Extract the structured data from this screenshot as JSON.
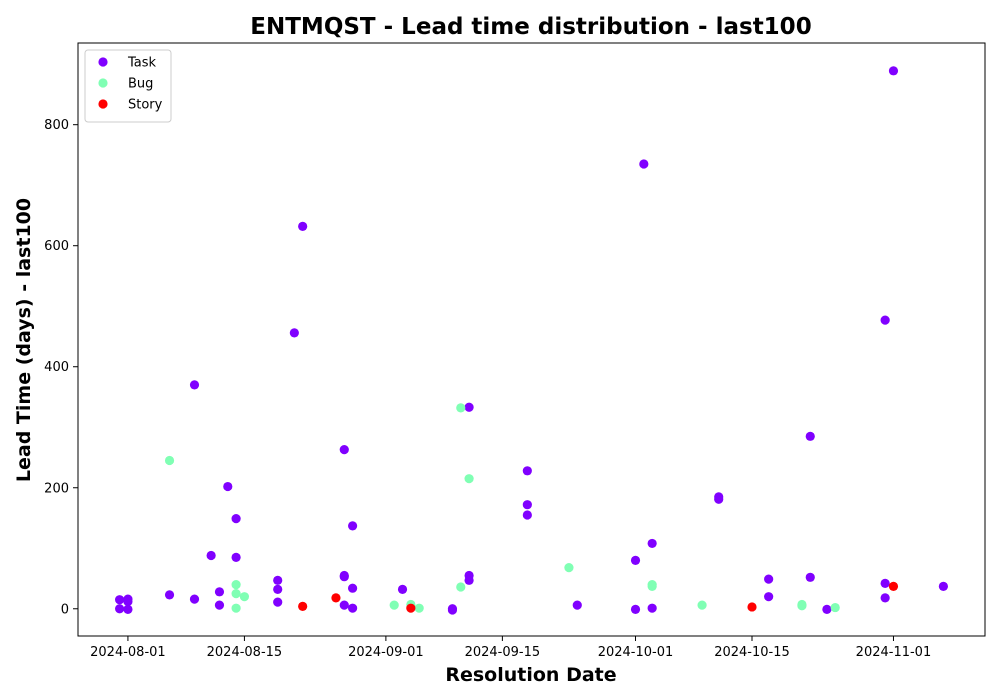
{
  "chart_data": {
    "type": "scatter",
    "title": "ENTMQST - Lead time distribution - last100",
    "xlabel": "Resolution Date",
    "ylabel": "Lead Time (days) - last100",
    "xlim": [
      "2024-07-26",
      "2024-11-12"
    ],
    "ylim": [
      -45,
      935
    ],
    "x_ticks": [
      "2024-08-01",
      "2024-08-15",
      "2024-09-01",
      "2024-09-15",
      "2024-10-01",
      "2024-10-15",
      "2024-11-01"
    ],
    "y_ticks": [
      0,
      200,
      400,
      600,
      800
    ],
    "legend_position": "top-left",
    "series": [
      {
        "name": "Task",
        "color": "#8000ff",
        "points": [
          {
            "x": "2024-07-31",
            "y": 15
          },
          {
            "x": "2024-07-31",
            "y": 0
          },
          {
            "x": "2024-08-01",
            "y": 16
          },
          {
            "x": "2024-08-01",
            "y": 12
          },
          {
            "x": "2024-08-01",
            "y": -1
          },
          {
            "x": "2024-08-06",
            "y": 23
          },
          {
            "x": "2024-08-09",
            "y": 370
          },
          {
            "x": "2024-08-09",
            "y": 16
          },
          {
            "x": "2024-08-11",
            "y": 88
          },
          {
            "x": "2024-08-12",
            "y": 28
          },
          {
            "x": "2024-08-12",
            "y": 6
          },
          {
            "x": "2024-08-13",
            "y": 202
          },
          {
            "x": "2024-08-14",
            "y": 149
          },
          {
            "x": "2024-08-14",
            "y": 85
          },
          {
            "x": "2024-08-19",
            "y": 47
          },
          {
            "x": "2024-08-19",
            "y": 32
          },
          {
            "x": "2024-08-19",
            "y": 11
          },
          {
            "x": "2024-08-21",
            "y": 456
          },
          {
            "x": "2024-08-22",
            "y": 632
          },
          {
            "x": "2024-08-27",
            "y": 263
          },
          {
            "x": "2024-08-27",
            "y": 55
          },
          {
            "x": "2024-08-27",
            "y": 53
          },
          {
            "x": "2024-08-27",
            "y": 6
          },
          {
            "x": "2024-08-28",
            "y": 137
          },
          {
            "x": "2024-08-28",
            "y": 34
          },
          {
            "x": "2024-08-28",
            "y": 1
          },
          {
            "x": "2024-09-03",
            "y": 32
          },
          {
            "x": "2024-09-09",
            "y": 0
          },
          {
            "x": "2024-09-09",
            "y": -2
          },
          {
            "x": "2024-09-11",
            "y": 333
          },
          {
            "x": "2024-09-11",
            "y": 55
          },
          {
            "x": "2024-09-11",
            "y": 47
          },
          {
            "x": "2024-09-18",
            "y": 228
          },
          {
            "x": "2024-09-18",
            "y": 172
          },
          {
            "x": "2024-09-18",
            "y": 155
          },
          {
            "x": "2024-09-24",
            "y": 6
          },
          {
            "x": "2024-10-01",
            "y": 80
          },
          {
            "x": "2024-10-01",
            "y": -1
          },
          {
            "x": "2024-10-02",
            "y": 735
          },
          {
            "x": "2024-10-03",
            "y": 108
          },
          {
            "x": "2024-10-03",
            "y": 1
          },
          {
            "x": "2024-10-11",
            "y": 185
          },
          {
            "x": "2024-10-11",
            "y": 181
          },
          {
            "x": "2024-10-17",
            "y": 49
          },
          {
            "x": "2024-10-17",
            "y": 20
          },
          {
            "x": "2024-10-22",
            "y": 285
          },
          {
            "x": "2024-10-22",
            "y": 52
          },
          {
            "x": "2024-10-24",
            "y": -1
          },
          {
            "x": "2024-10-31",
            "y": 477
          },
          {
            "x": "2024-10-31",
            "y": 42
          },
          {
            "x": "2024-10-31",
            "y": 18
          },
          {
            "x": "2024-11-01",
            "y": 889
          },
          {
            "x": "2024-11-07",
            "y": 37
          }
        ]
      },
      {
        "name": "Bug",
        "color": "#80ffb4",
        "points": [
          {
            "x": "2024-08-06",
            "y": 245
          },
          {
            "x": "2024-08-14",
            "y": 40
          },
          {
            "x": "2024-08-14",
            "y": 25
          },
          {
            "x": "2024-08-14",
            "y": 1
          },
          {
            "x": "2024-08-15",
            "y": 20
          },
          {
            "x": "2024-09-02",
            "y": 6
          },
          {
            "x": "2024-09-04",
            "y": 7
          },
          {
            "x": "2024-09-05",
            "y": 1
          },
          {
            "x": "2024-09-10",
            "y": 332
          },
          {
            "x": "2024-09-10",
            "y": 36
          },
          {
            "x": "2024-09-11",
            "y": 215
          },
          {
            "x": "2024-09-23",
            "y": 68
          },
          {
            "x": "2024-10-03",
            "y": 40
          },
          {
            "x": "2024-10-03",
            "y": 37
          },
          {
            "x": "2024-10-09",
            "y": 6
          },
          {
            "x": "2024-10-21",
            "y": 7
          },
          {
            "x": "2024-10-21",
            "y": 5
          },
          {
            "x": "2024-10-25",
            "y": 2
          }
        ]
      },
      {
        "name": "Story",
        "color": "#ff0000",
        "points": [
          {
            "x": "2024-08-22",
            "y": 4
          },
          {
            "x": "2024-08-26",
            "y": 18
          },
          {
            "x": "2024-09-04",
            "y": 1
          },
          {
            "x": "2024-10-15",
            "y": 3
          },
          {
            "x": "2024-11-01",
            "y": 37
          }
        ]
      }
    ]
  }
}
